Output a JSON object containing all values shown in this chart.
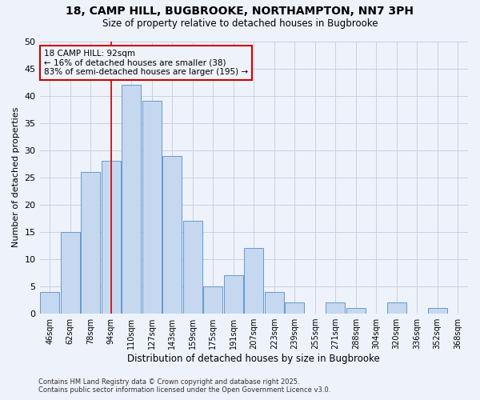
{
  "title1": "18, CAMP HILL, BUGBROOKE, NORTHAMPTON, NN7 3PH",
  "title2": "Size of property relative to detached houses in Bugbrooke",
  "xlabel": "Distribution of detached houses by size in Bugbrooke",
  "ylabel": "Number of detached properties",
  "footnote1": "Contains HM Land Registry data © Crown copyright and database right 2025.",
  "footnote2": "Contains public sector information licensed under the Open Government Licence v3.0.",
  "bar_labels": [
    "46sqm",
    "62sqm",
    "78sqm",
    "94sqm",
    "110sqm",
    "127sqm",
    "143sqm",
    "159sqm",
    "175sqm",
    "191sqm",
    "207sqm",
    "223sqm",
    "239sqm",
    "255sqm",
    "271sqm",
    "288sqm",
    "304sqm",
    "320sqm",
    "336sqm",
    "352sqm",
    "368sqm"
  ],
  "bar_values": [
    4,
    15,
    26,
    28,
    42,
    39,
    29,
    17,
    5,
    7,
    12,
    4,
    2,
    0,
    2,
    1,
    0,
    2,
    0,
    1,
    0
  ],
  "bar_color": "#c5d8f0",
  "bar_edge_color": "#6699cc",
  "background_color": "#eef2fb",
  "grid_color": "#c8d0e0",
  "vline_color": "#cc0000",
  "annotation_line1": "18 CAMP HILL: 92sqm",
  "annotation_line2": "← 16% of detached houses are smaller (38)",
  "annotation_line3": "83% of semi-detached houses are larger (195) →",
  "annotation_box_color": "#cc0000",
  "ylim": [
    0,
    50
  ],
  "yticks": [
    0,
    5,
    10,
    15,
    20,
    25,
    30,
    35,
    40,
    45,
    50
  ]
}
